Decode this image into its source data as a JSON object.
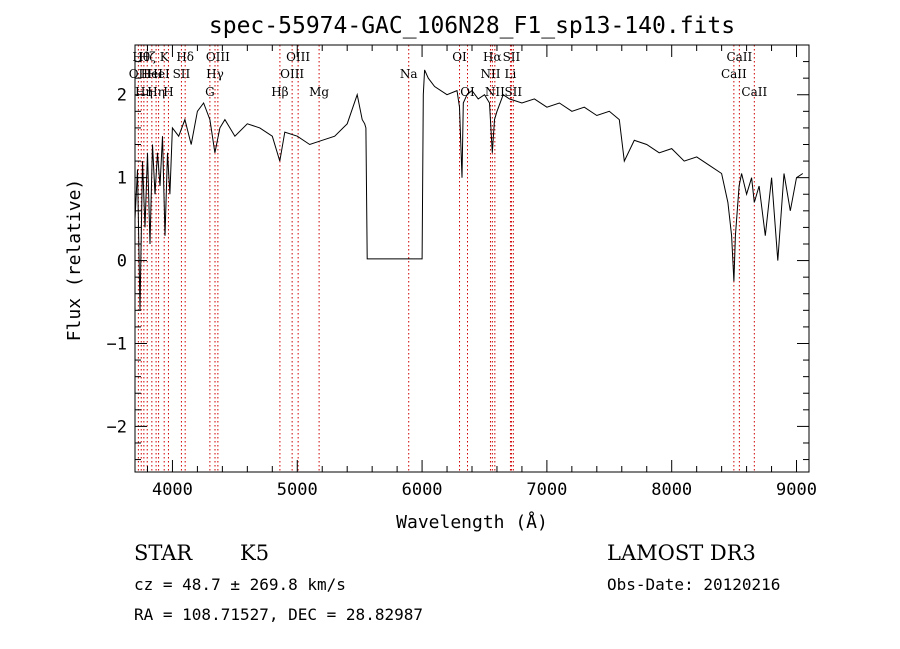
{
  "chart_data": {
    "type": "line",
    "title": "spec-55974-GAC_106N28_F1_sp13-140.fits",
    "xlabel": "Wavelength (Å)",
    "ylabel": "Flux (relative)",
    "xlim": [
      3700,
      9100
    ],
    "ylim": [
      -2.55,
      2.6
    ],
    "x_ticks": [
      4000,
      5000,
      6000,
      7000,
      8000,
      9000
    ],
    "y_ticks": [
      -2,
      -1,
      0,
      1,
      2
    ],
    "series": [
      {
        "name": "spectrum",
        "x": [
          3700,
          3720,
          3740,
          3760,
          3780,
          3800,
          3820,
          3840,
          3860,
          3880,
          3900,
          3920,
          3940,
          3960,
          3980,
          4000,
          4050,
          4100,
          4150,
          4200,
          4250,
          4300,
          4340,
          4380,
          4420,
          4500,
          4600,
          4700,
          4800,
          4860,
          4900,
          5000,
          5100,
          5200,
          5300,
          5400,
          5480,
          5520,
          5540,
          5550,
          5560,
          5600,
          5800,
          6000,
          6010,
          6020,
          6050,
          6100,
          6200,
          6280,
          6300,
          6320,
          6330,
          6360,
          6400,
          6450,
          6500,
          6540,
          6563,
          6580,
          6600,
          6650,
          6700,
          6800,
          6900,
          7000,
          7100,
          7200,
          7300,
          7400,
          7500,
          7580,
          7620,
          7700,
          7800,
          7900,
          8000,
          8100,
          8200,
          8300,
          8400,
          8450,
          8480,
          8498,
          8510,
          8540,
          8560,
          8600,
          8640,
          8662,
          8700,
          8750,
          8800,
          8850,
          8900,
          8950,
          9000,
          9050
        ],
        "y": [
          0.5,
          1.1,
          -0.6,
          1.2,
          0.4,
          1.3,
          0.2,
          1.4,
          0.8,
          1.3,
          0.9,
          1.5,
          0.3,
          1.3,
          0.8,
          1.6,
          1.5,
          1.7,
          1.4,
          1.8,
          1.9,
          1.7,
          1.3,
          1.6,
          1.7,
          1.5,
          1.65,
          1.6,
          1.5,
          1.2,
          1.55,
          1.5,
          1.4,
          1.45,
          1.5,
          1.65,
          2.0,
          1.7,
          1.65,
          1.6,
          0.02,
          0.02,
          0.02,
          0.02,
          2.0,
          2.3,
          2.2,
          2.1,
          2.0,
          2.05,
          1.85,
          1.0,
          1.9,
          2.0,
          2.05,
          1.95,
          2.0,
          1.9,
          1.3,
          1.7,
          1.8,
          2.0,
          1.95,
          1.9,
          1.95,
          1.85,
          1.9,
          1.8,
          1.85,
          1.75,
          1.8,
          1.7,
          1.2,
          1.45,
          1.4,
          1.3,
          1.35,
          1.2,
          1.25,
          1.15,
          1.05,
          0.7,
          0.3,
          -0.25,
          0.3,
          0.9,
          1.05,
          0.8,
          1.0,
          0.7,
          0.9,
          0.3,
          1.0,
          0.0,
          1.05,
          0.6,
          1.0,
          1.05
        ]
      }
    ],
    "emission_lines": [
      {
        "wavelength": 3727,
        "label": "OII",
        "row": 2
      },
      {
        "wavelength": 3750,
        "label": "Hθ",
        "row": 1
      },
      {
        "wavelength": 3771,
        "label": "Hη",
        "row": 3
      },
      {
        "wavelength": 3798,
        "label": "Hζ",
        "row": 1
      },
      {
        "wavelength": 3835,
        "label": "HeI",
        "row": 2
      },
      {
        "wavelength": 3869,
        "label": "Hη",
        "row": 3
      },
      {
        "wavelength": 3889,
        "label": "HeI",
        "row": 2
      },
      {
        "wavelength": 3934,
        "label": "K",
        "row": 1
      },
      {
        "wavelength": 3968,
        "label": "H",
        "row": 3
      },
      {
        "wavelength": 4072,
        "label": "SII",
        "row": 2
      },
      {
        "wavelength": 4102,
        "label": "Hδ",
        "row": 1
      },
      {
        "wavelength": 4300,
        "label": "G",
        "row": 3
      },
      {
        "wavelength": 4341,
        "label": "Hγ",
        "row": 2
      },
      {
        "wavelength": 4364,
        "label": "OIII",
        "row": 1
      },
      {
        "wavelength": 4861,
        "label": "Hβ",
        "row": 3
      },
      {
        "wavelength": 4959,
        "label": "OIII",
        "row": 2
      },
      {
        "wavelength": 5007,
        "label": "OIII",
        "row": 1
      },
      {
        "wavelength": 5175,
        "label": "Mg",
        "row": 3
      },
      {
        "wavelength": 5893,
        "label": "Na",
        "row": 2
      },
      {
        "wavelength": 6300,
        "label": "OI",
        "row": 1
      },
      {
        "wavelength": 6364,
        "label": "OI",
        "row": 3
      },
      {
        "wavelength": 6548,
        "label": "NII",
        "row": 2
      },
      {
        "wavelength": 6563,
        "label": "Hα",
        "row": 1
      },
      {
        "wavelength": 6583,
        "label": "NII",
        "row": 3
      },
      {
        "wavelength": 6708,
        "label": "Li",
        "row": 2
      },
      {
        "wavelength": 6716,
        "label": "SII",
        "row": 1
      },
      {
        "wavelength": 6731,
        "label": "SII",
        "row": 3
      },
      {
        "wavelength": 8498,
        "label": "CaII",
        "row": 2
      },
      {
        "wavelength": 8542,
        "label": "CaII",
        "row": 1
      },
      {
        "wavelength": 8662,
        "label": "CaII",
        "row": 3
      }
    ]
  },
  "info": {
    "object_class": "STAR",
    "subclass": "K5",
    "survey": "LAMOST DR3",
    "redshift_text": "cz = 48.7 ± 269.8 km/s",
    "obs_date_text": "Obs-Date: 20120216",
    "coords_text": "RA = 108.71527, DEC =  28.82987"
  },
  "colors": {
    "emission_line": "#d00000",
    "spectrum": "#000000",
    "axes": "#000000"
  }
}
